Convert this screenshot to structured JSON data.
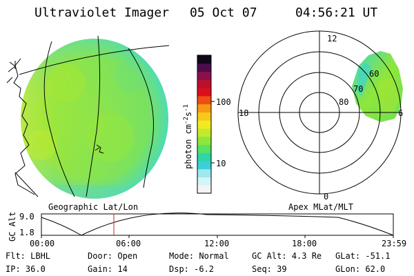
{
  "header": {
    "instrument": "Ultraviolet Imager",
    "date": "05 Oct 07",
    "time": "04:56:21 UT"
  },
  "colorbar": {
    "label": "photon cm",
    "label_sup1": "-2",
    "label_mid": "s",
    "label_sup2": "-1",
    "ticks": [
      "100",
      "10"
    ],
    "colors": [
      "#f4f4f4",
      "#d6f5f5",
      "#9ee8ee",
      "#3ccfd8",
      "#2fd6a5",
      "#55e265",
      "#8fe63c",
      "#c4ea2c",
      "#f2ea20",
      "#f7c91a",
      "#f79914",
      "#ef4e14",
      "#d9101a",
      "#b8102e",
      "#8c1048",
      "#4c0c4c",
      "#100818"
    ]
  },
  "left_panel": {
    "caption": "Geographic Lat/Lon"
  },
  "right_panel": {
    "caption": "Apex MLat/MLT",
    "mlt_labels": [
      "12",
      "18",
      "6",
      "0"
    ],
    "lat_labels": [
      "60",
      "70",
      "80"
    ]
  },
  "timeline": {
    "ylabel": "GC Alt",
    "ymax": "9.0",
    "ymin": "1.8",
    "ticks": [
      "00:00",
      "06:00",
      "12:00",
      "18:00",
      "23:59"
    ],
    "current_time_hours": 4.94,
    "marker_color": "#d42020"
  },
  "footer": {
    "row1": {
      "flt": "Flt: LBHL",
      "door": "Door: Open",
      "mode": "Mode: Normal",
      "gcalt": "GC Alt: 4.3 Re",
      "glat": "GLat: -51.1"
    },
    "row2": {
      "ip": "IP: 36.0",
      "gain": "Gain: 14",
      "dsp": "Dsp:   -6.2",
      "seq": "Seq: 39",
      "glon": "GLon: 62.0"
    }
  }
}
